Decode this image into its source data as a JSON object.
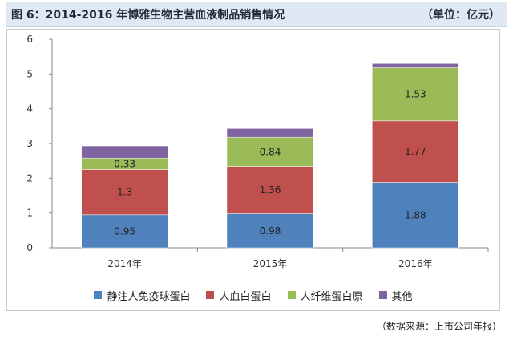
{
  "header": {
    "title": "图 6：2014-2016 年博雅生物主营血液制品销售情况",
    "unit": "（单位：亿元）"
  },
  "source": "（数据来源：上市公司年报）",
  "colors": {
    "series_1": "#4f81bd",
    "series_2": "#c0504d",
    "series_3": "#9bbb59",
    "series_4": "#8064a2"
  },
  "chart_data": {
    "type": "bar",
    "stacked": true,
    "categories": [
      "2014年",
      "2015年",
      "2016年"
    ],
    "series": [
      {
        "name": "静注人免疫球蛋白",
        "values": [
          0.95,
          0.98,
          1.88
        ],
        "labels": [
          "0.95",
          "0.98",
          "1.88"
        ]
      },
      {
        "name": "人血白蛋白",
        "values": [
          1.3,
          1.36,
          1.77
        ],
        "labels": [
          "1.3",
          "1.36",
          "1.77"
        ]
      },
      {
        "name": "人纤维蛋白原",
        "values": [
          0.33,
          0.84,
          1.53
        ],
        "labels": [
          "0.33",
          "0.84",
          "1.53"
        ]
      },
      {
        "name": "其他",
        "values": [
          0.35,
          0.25,
          0.12
        ],
        "labels": []
      }
    ],
    "ylim": [
      0,
      6
    ],
    "yticks": [
      "0",
      "1",
      "2",
      "3",
      "4",
      "5",
      "6"
    ],
    "grid": false,
    "legend": "bottom"
  }
}
